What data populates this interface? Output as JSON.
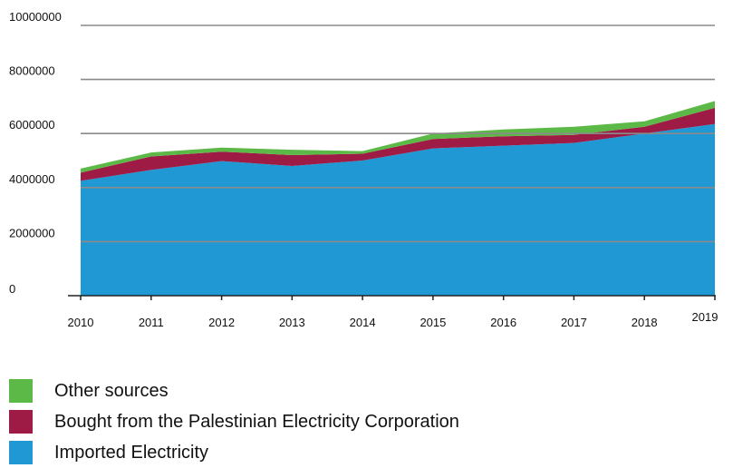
{
  "chart_data": {
    "type": "area",
    "stacked": true,
    "title": "",
    "xlabel": "",
    "ylabel": "",
    "x": [
      "2010",
      "2011",
      "2012",
      "2013",
      "2014",
      "2015",
      "2016",
      "2017",
      "2018",
      "2019"
    ],
    "ylim": [
      0,
      10000000
    ],
    "yticks": [
      "0",
      "2000000",
      "4000000",
      "6000000",
      "8000000",
      "10000000"
    ],
    "grid": true,
    "legend_position": "bottom-left",
    "series": [
      {
        "name": "Imported Electricity",
        "color": "#1f98d4",
        "values": [
          4250000,
          4650000,
          4980000,
          4800000,
          5000000,
          5450000,
          5550000,
          5650000,
          6000000,
          6350000
        ]
      },
      {
        "name": "Bought from the Palestinian Electricity Corporation",
        "color": "#9e1b45",
        "values": [
          300000,
          500000,
          350000,
          400000,
          250000,
          350000,
          350000,
          300000,
          250000,
          600000
        ]
      },
      {
        "name": "Other sources",
        "color": "#5cb947",
        "values": [
          150000,
          150000,
          150000,
          200000,
          100000,
          200000,
          250000,
          300000,
          200000,
          250000
        ]
      }
    ]
  },
  "legend": {
    "items": [
      {
        "label": "Other sources",
        "color": "#5cb947"
      },
      {
        "label": "Bought from the Palestinian Electricity Corporation",
        "color": "#9e1b45"
      },
      {
        "label": "Imported Electricity",
        "color": "#1f98d4"
      }
    ]
  }
}
